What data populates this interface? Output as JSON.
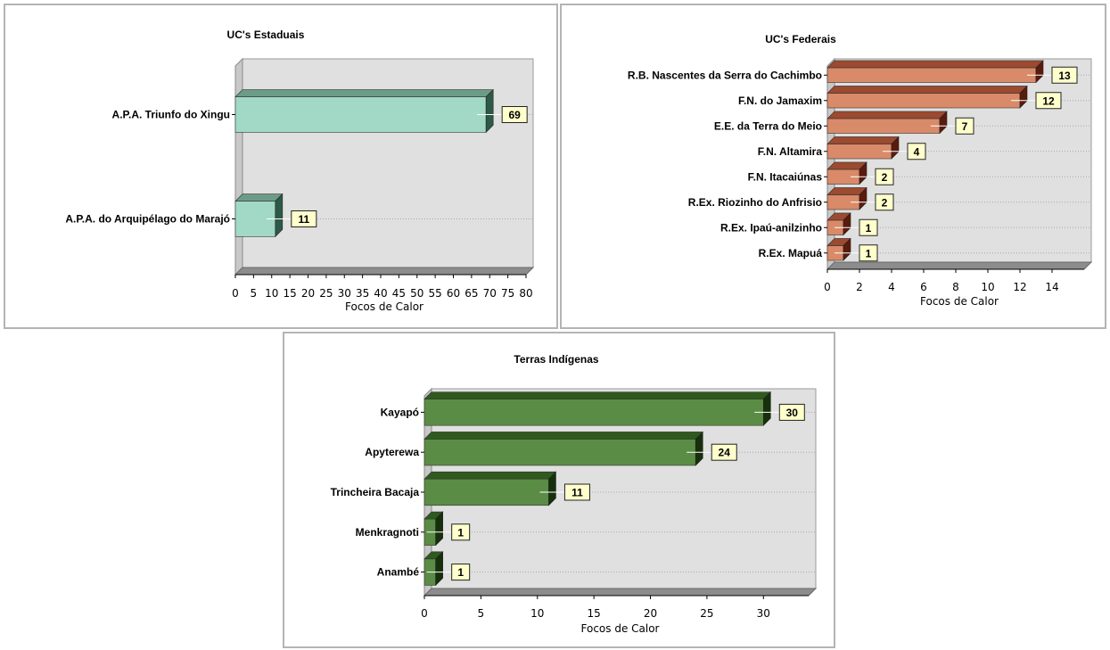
{
  "chart_data": [
    {
      "type": "bar",
      "orientation": "horizontal",
      "title": "UC's Estaduais",
      "xlabel": "Focos de Calor",
      "categories": [
        "A.P.A. Triunfo do Xingu",
        "A.P.A. do Arquipélago do Marajó"
      ],
      "values": [
        69,
        11
      ],
      "xlim": [
        0,
        80
      ],
      "xticks": [
        0,
        5,
        10,
        15,
        20,
        25,
        30,
        35,
        40,
        45,
        50,
        55,
        60,
        65,
        70,
        75,
        80
      ],
      "grid": true,
      "colors": {
        "front": "#a2d9c6",
        "top": "#6c9c88",
        "side": "#2d5a48"
      }
    },
    {
      "type": "bar",
      "orientation": "horizontal",
      "title": "UC's Federais",
      "xlabel": "Focos de Calor",
      "categories": [
        "R.B. Nascentes da Serra do Cachimbo",
        "F.N. do Jamaxim",
        "E.E. da Terra do Meio",
        "F.N. Altamira",
        "F.N. Itacaiúnas",
        "R.Ex. Riozinho do Anfrisio",
        "R.Ex. Ipaú-anilzinho",
        "R.Ex. Mapuá"
      ],
      "values": [
        13,
        12,
        7,
        4,
        2,
        2,
        1,
        1
      ],
      "xlim": [
        0,
        16
      ],
      "xticks": [
        0,
        2,
        4,
        6,
        8,
        10,
        12,
        14
      ],
      "grid": true,
      "colors": {
        "front": "#d98a68",
        "top": "#9c4a30",
        "side": "#5a1a0c"
      }
    },
    {
      "type": "bar",
      "orientation": "horizontal",
      "title": "Terras Indígenas",
      "xlabel": "Focos de Calor",
      "categories": [
        "Kayapó",
        "Apyterewa",
        "Trincheira Bacaja",
        "Menkragnoti",
        "Anambé"
      ],
      "values": [
        30,
        24,
        11,
        1,
        1
      ],
      "xlim": [
        0,
        34
      ],
      "xticks": [
        0,
        5,
        10,
        15,
        20,
        25,
        30
      ],
      "grid": true,
      "colors": {
        "front": "#5b8c45",
        "top": "#2f5a1e",
        "side": "#16300c"
      }
    }
  ]
}
